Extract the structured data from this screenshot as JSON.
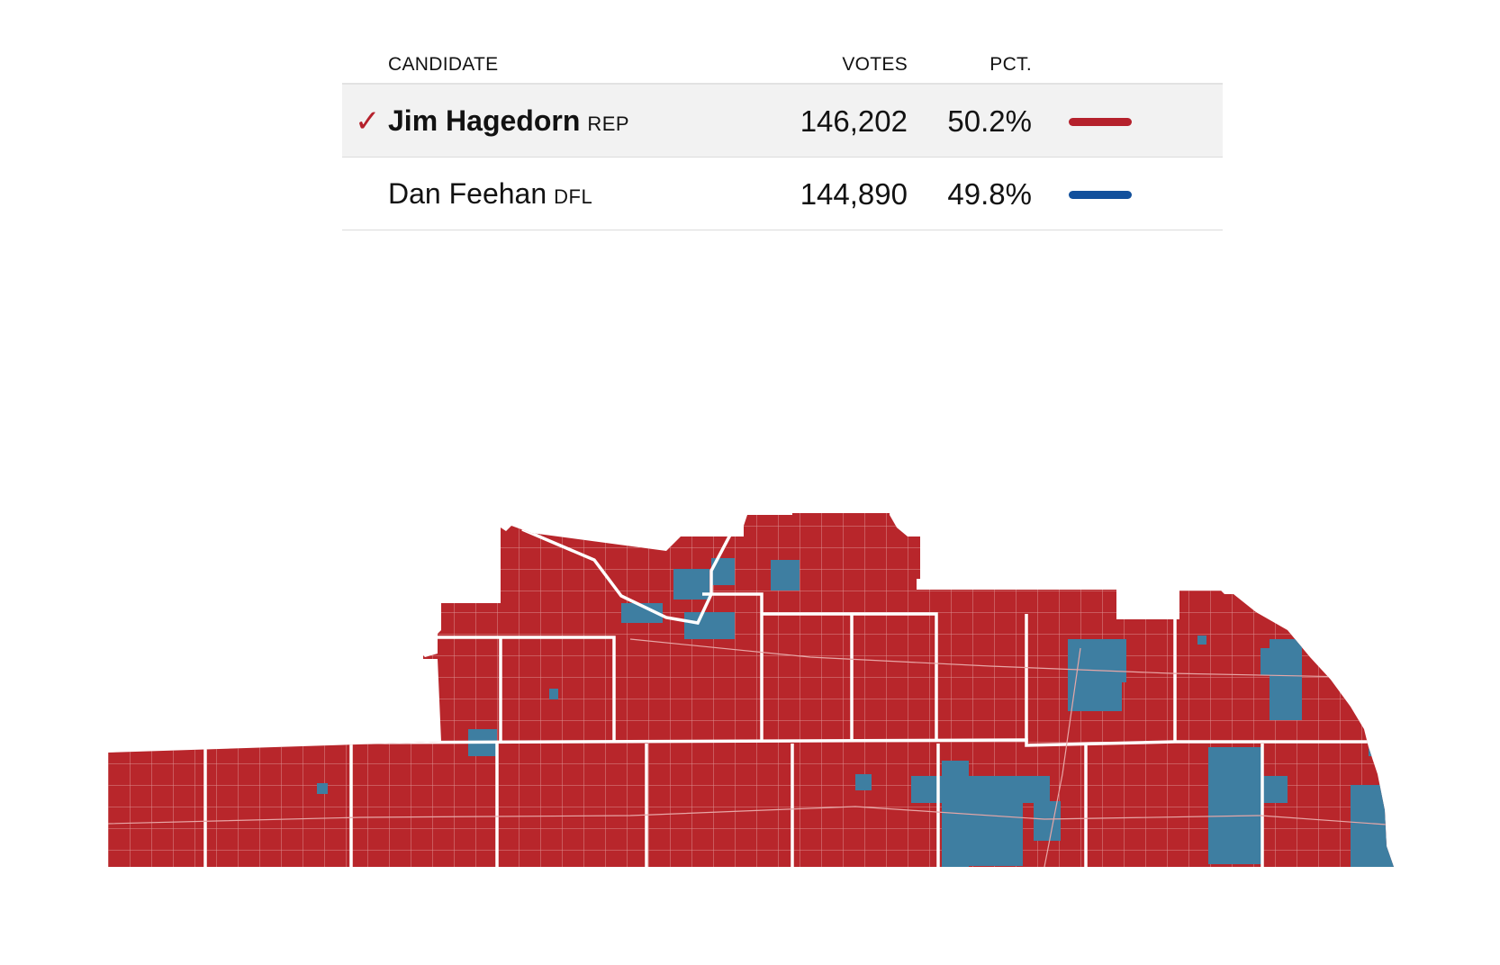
{
  "table": {
    "headers": {
      "candidate": "CANDIDATE",
      "votes": "VOTES",
      "pct": "PCT."
    },
    "candidates": [
      {
        "name": "Jim Hagedorn",
        "party": "REP",
        "votes": "146,202",
        "pct": "50.2%",
        "share": 0.502,
        "winner": true,
        "color": "#b5212c"
      },
      {
        "name": "Dan Feehan",
        "party": "DFL",
        "votes": "144,890",
        "pct": "49.8%",
        "share": 0.498,
        "winner": false,
        "color": "#12509c"
      }
    ],
    "winner_mark": "✓"
  },
  "map": {
    "colors": {
      "rep": "#b8262b",
      "dfl": "#3e7ea1",
      "precinct_line": "#d98a8a",
      "county_line": "#ffffff"
    }
  }
}
